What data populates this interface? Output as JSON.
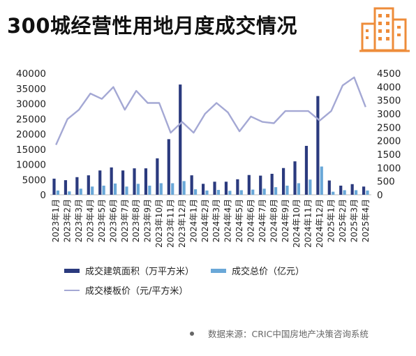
{
  "title": "300城经营性用地月度成交情况",
  "colors": {
    "area_bar": "#2b3a7e",
    "price_bar": "#6aa8d8",
    "floor_price_line": "#a4a8d4",
    "icon": "#ee8c3a"
  },
  "legend": [
    {
      "name": "成交建筑面积（万平方米）",
      "kind": "bar",
      "color": "#2b3a7e"
    },
    {
      "name": "成交总价（亿元）",
      "kind": "bar",
      "color": "#6aa8d8"
    },
    {
      "name": "成交楼板价（元/平方米）",
      "kind": "line",
      "color": "#a4a8d4"
    }
  ],
  "source": "数据来源：CRIC中国房地产决策咨询系统",
  "chart_data": {
    "type": "bar",
    "title": "300城经营性用地月度成交情况",
    "categories": [
      "2023年1月",
      "2023年2月",
      "2023年3月",
      "2023年4月",
      "2023年5月",
      "2023年6月",
      "2023年7月",
      "2023年8月",
      "2023年9月",
      "2023年10月",
      "2023年11月",
      "2023年12月",
      "2024年1月",
      "2024年2月",
      "2024年3月",
      "2024年4月",
      "2024年5月",
      "2024年6月",
      "2024年7月",
      "2024年8月",
      "2024年9月",
      "2024年10月",
      "2024年11月",
      "2024年12月",
      "2025年1月",
      "2025年2月",
      "2025年3月",
      "2025年4月"
    ],
    "y_left": {
      "ticks": [
        0,
        5000,
        10000,
        15000,
        20000,
        25000,
        30000,
        35000,
        40000
      ],
      "range": [
        0,
        40000
      ]
    },
    "y_right": {
      "ticks": [
        0,
        500,
        1000,
        1500,
        2000,
        2500,
        3000,
        3500,
        4000,
        4500
      ],
      "range": [
        0,
        4500
      ]
    },
    "series": [
      {
        "name": "成交建筑面积（万平方米）",
        "type": "bar",
        "axis": "left",
        "values": [
          5300,
          4800,
          5800,
          6400,
          8000,
          9000,
          8000,
          8700,
          8700,
          12000,
          18300,
          36300,
          6400,
          3600,
          4300,
          4300,
          5100,
          6500,
          6300,
          6900,
          8800,
          11000,
          16100,
          32500,
          4700,
          3000,
          3500,
          2700
        ]
      },
      {
        "name": "成交总价（亿元）",
        "type": "bar",
        "axis": "left",
        "values": [
          1400,
          1100,
          2000,
          2700,
          3000,
          3700,
          2700,
          3600,
          3000,
          3800,
          3800,
          4500,
          1800,
          1400,
          1600,
          1300,
          1500,
          1700,
          2000,
          2500,
          3000,
          3800,
          5000,
          9300,
          1000,
          1500,
          1500,
          1400
        ]
      },
      {
        "name": "成交楼板价（元/平方米）",
        "type": "line",
        "axis": "right",
        "values": [
          1850,
          2800,
          3150,
          3750,
          3550,
          3990,
          3150,
          3850,
          3400,
          3400,
          2300,
          2700,
          2300,
          3000,
          3400,
          3050,
          2350,
          2900,
          2700,
          2650,
          3100,
          3100,
          3100,
          2750,
          3100,
          4050,
          4350,
          3250
        ]
      }
    ]
  }
}
